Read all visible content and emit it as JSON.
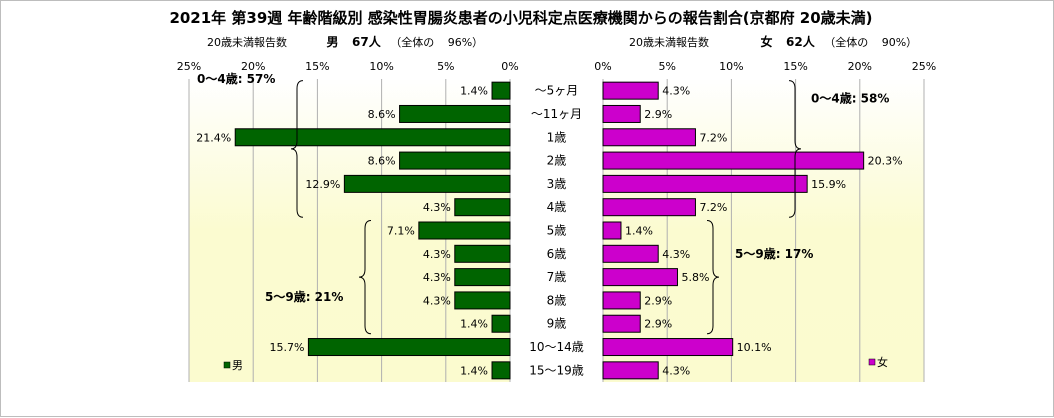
{
  "title": "2021年 第39週 年齢階級別 感染性胃腸炎患者の小児科定点医療機関からの報告割合(京都府 20歳未満)",
  "male_header": {
    "caption": "20歳未満報告数",
    "sex": "男",
    "count": "67人",
    "share_prefix": "（全体の",
    "share": "96%）"
  },
  "female_header": {
    "caption": "20歳未満報告数",
    "sex": "女",
    "count": "62人",
    "share_prefix": "（全体の",
    "share": "90%）"
  },
  "chart_data": {
    "type": "bar",
    "categories": [
      "～5ヶ月",
      "～11ヶ月",
      "1歳",
      "2歳",
      "3歳",
      "4歳",
      "5歳",
      "6歳",
      "7歳",
      "8歳",
      "9歳",
      "10～14歳",
      "15～19歳"
    ],
    "series": [
      {
        "name": "男",
        "color": "#006400",
        "side": "left",
        "values": [
          1.4,
          8.6,
          21.4,
          8.6,
          12.9,
          4.3,
          7.1,
          4.3,
          4.3,
          4.3,
          1.4,
          15.7,
          1.4
        ]
      },
      {
        "name": "女",
        "color": "#cc00cc",
        "side": "right",
        "values": [
          4.3,
          2.9,
          7.2,
          20.3,
          15.9,
          7.2,
          1.4,
          4.3,
          5.8,
          2.9,
          2.9,
          10.1,
          4.3
        ]
      }
    ],
    "value_labels": {
      "male": [
        "1.4%",
        "8.6%",
        "21.4%",
        "8.6%",
        "12.9%",
        "4.3%",
        "7.1%",
        "4.3%",
        "4.3%",
        "4.3%",
        "1.4%",
        "15.7%",
        "1.4%"
      ],
      "female": [
        "4.3%",
        "2.9%",
        "7.2%",
        "20.3%",
        "15.9%",
        "7.2%",
        "1.4%",
        "4.3%",
        "5.8%",
        "2.9%",
        "2.9%",
        "10.1%",
        "4.3%"
      ]
    },
    "xlim": [
      0,
      25
    ],
    "male_ticks": [
      "25%",
      "20%",
      "15%",
      "10%",
      "5%",
      "0%"
    ],
    "female_ticks": [
      "0%",
      "5%",
      "10%",
      "15%",
      "20%",
      "25%"
    ],
    "grid": true,
    "groups": {
      "male": [
        {
          "label": "0～4歳: 57%",
          "from": 0,
          "to": 5
        },
        {
          "label": "5～9歳: 21%",
          "from": 6,
          "to": 10
        }
      ],
      "female": [
        {
          "label": "0～4歳: 58%",
          "from": 0,
          "to": 5
        },
        {
          "label": "5～9歳: 17%",
          "from": 6,
          "to": 10
        }
      ]
    },
    "legend": {
      "male": {
        "label": "男",
        "placement": "bottom-left"
      },
      "female": {
        "label": "女",
        "placement": "bottom-right"
      }
    }
  }
}
